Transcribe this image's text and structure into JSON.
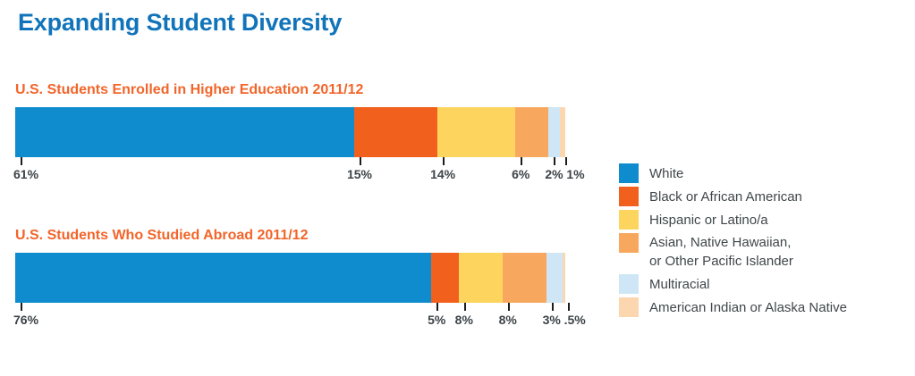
{
  "page": {
    "background": "#ffffff"
  },
  "colors": {
    "title": "#1174ba",
    "subtitle": "#f2652a",
    "value_label": "#3c4347",
    "tick": "#1d1d1b",
    "legend_label": "#3f474a"
  },
  "chart_data": {
    "type": "bar",
    "subtype": "stacked-horizontal",
    "title": "Expanding Student Diversity",
    "unit": "%",
    "legend_position": "right",
    "grid": false,
    "series": [
      {
        "name": "White",
        "color": "#0e8ccd"
      },
      {
        "name": "Black or African American",
        "color": "#f2601d"
      },
      {
        "name": "Hispanic or Latino/a",
        "color": "#fdd55e"
      },
      {
        "name": "Asian, Native Hawaiian,",
        "name_line2": "or Other Pacific Islander",
        "color": "#f7a85e"
      },
      {
        "name": "Multiracial",
        "color": "#cfe6f6"
      },
      {
        "name": "American Indian or Alaska Native",
        "color": "#fbd6ae"
      }
    ],
    "charts": [
      {
        "label": "U.S. Students Enrolled in Higher Education 2011/12",
        "values": [
          61,
          15,
          14,
          6,
          2,
          1
        ],
        "value_labels": [
          "61%",
          "15%",
          "14%",
          "6%",
          "2%",
          "1%"
        ]
      },
      {
        "label": "U.S. Students Who Studied Abroad 2011/12",
        "values": [
          76,
          5,
          8,
          8,
          3,
          0.5
        ],
        "value_labels": [
          "76%",
          "5%",
          "8%",
          "8%",
          "3%",
          ".5%"
        ]
      }
    ]
  }
}
